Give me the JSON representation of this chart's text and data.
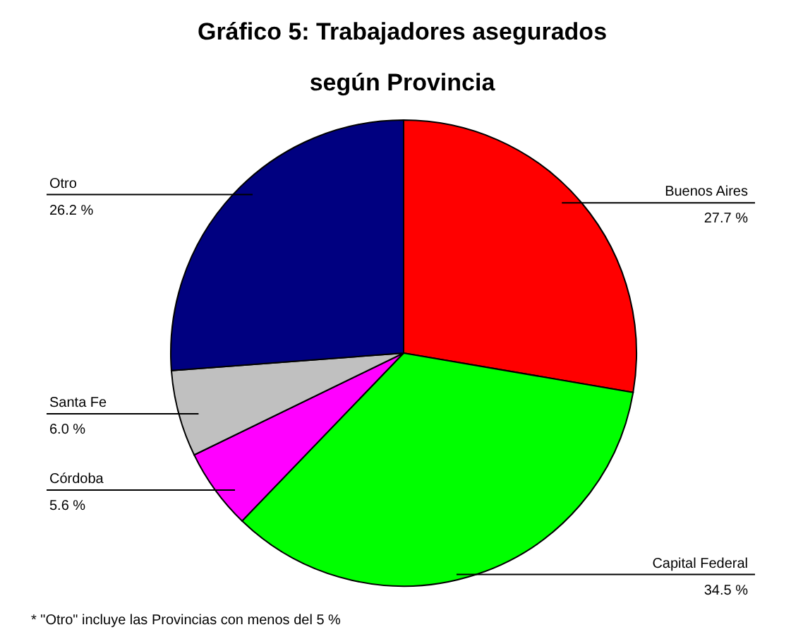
{
  "chart_data": {
    "type": "pie",
    "title": "Gráfico 5: Trabajadores asegurados\nsegún Provincia",
    "categories": [
      "Buenos Aires",
      "Capital Federal",
      "Córdoba",
      "Santa Fe",
      "Otro"
    ],
    "values": [
      27.7,
      34.5,
      5.6,
      6.0,
      26.2
    ],
    "colors": [
      "#ff0000",
      "#00ff00",
      "#ff00ff",
      "#c0c0c0",
      "#000080"
    ],
    "value_labels": [
      "27.7 %",
      "34.5 %",
      "5.6 %",
      "6.0 %",
      "26.2 %"
    ],
    "annotations": [
      "* \"Otro\" incluye las Provincias con menos del 5 %"
    ],
    "legend": false
  }
}
